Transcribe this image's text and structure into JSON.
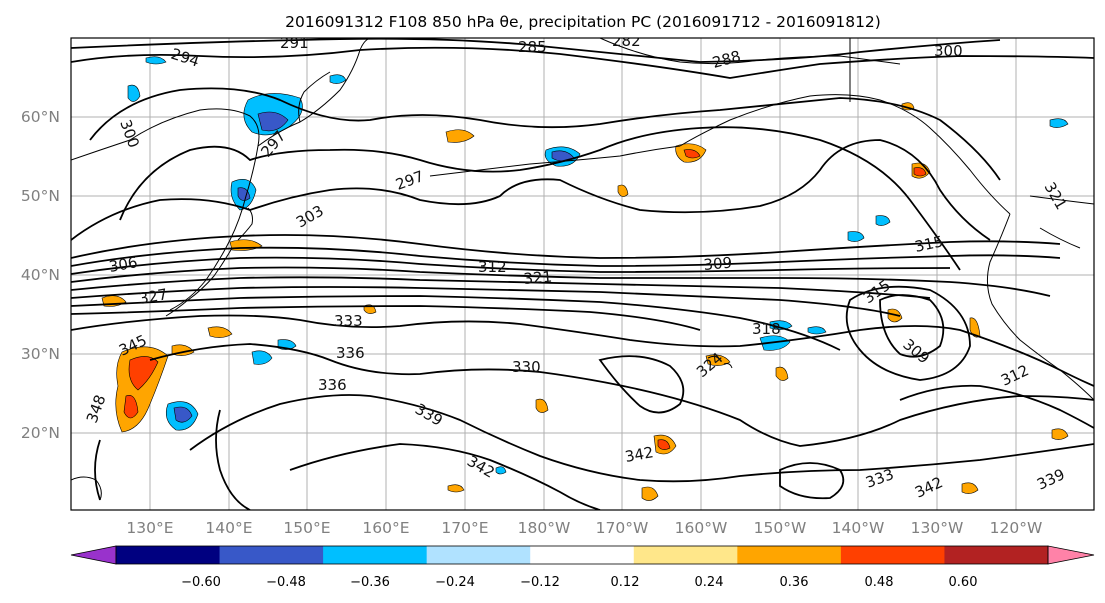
{
  "title": "2016091312 F108 850 hPa θe, precipitation PC (2016091712 - 2016091812)",
  "lat_labels": [
    "60°N",
    "50°N",
    "40°N",
    "30°N",
    "20°N"
  ],
  "lon_labels": [
    "130°E",
    "140°E",
    "150°E",
    "160°E",
    "170°E",
    "180°W",
    "170°W",
    "160°W",
    "150°W",
    "140°W",
    "130°W",
    "120°W"
  ],
  "contour_labels": [
    "294",
    "291",
    "285",
    "282",
    "288",
    "300",
    "300",
    "297",
    "297",
    "303",
    "306",
    "327",
    "312",
    "321",
    "309",
    "315",
    "315",
    "321",
    "333",
    "336",
    "336",
    "330",
    "318",
    "324",
    "309",
    "312",
    "339",
    "342",
    "342",
    "333",
    "342",
    "339",
    "345",
    "348"
  ],
  "colorbar": {
    "ticks": [
      "−0.60",
      "−0.48",
      "−0.36",
      "−0.24",
      "−0.12",
      "0.12",
      "0.24",
      "0.36",
      "0.48",
      "0.60"
    ],
    "colors": [
      "#9932cc",
      "#000080",
      "#3858c8",
      "#00bfff",
      "#b0e2ff",
      "#ffffff",
      "#ffe78a",
      "#ffa500",
      "#ff4000",
      "#b22222",
      "#ff82a8"
    ]
  }
}
